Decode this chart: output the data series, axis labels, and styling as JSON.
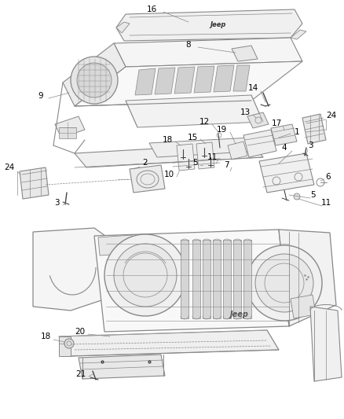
{
  "bg_color": "#ffffff",
  "line_color": "#888888",
  "dark_color": "#444444",
  "label_color": "#000000",
  "label_fontsize": 7.5,
  "fig_width": 4.38,
  "fig_height": 5.33,
  "dpi": 100
}
